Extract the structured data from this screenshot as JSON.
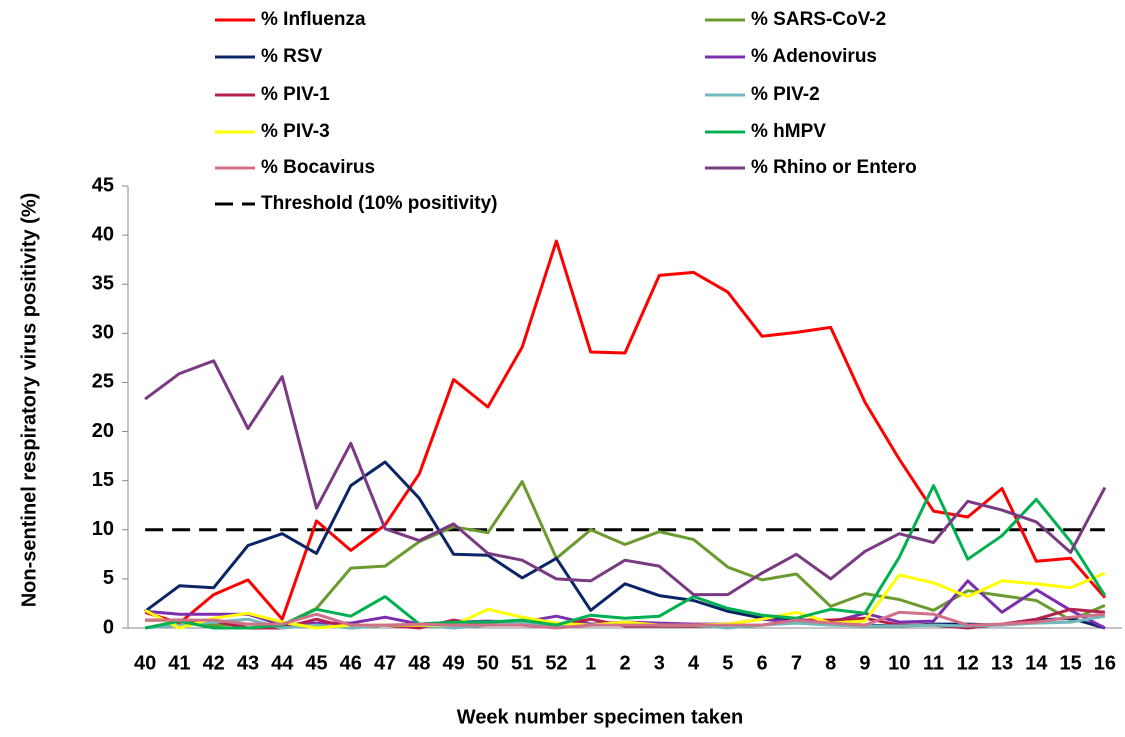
{
  "chart_data": {
    "type": "line",
    "x_label": "Week number specimen taken",
    "y_label": "Non-sentinel respiratory virus positivity (%)",
    "categories": [
      "40",
      "41",
      "42",
      "43",
      "44",
      "45",
      "46",
      "47",
      "48",
      "49",
      "50",
      "51",
      "52",
      "1",
      "2",
      "3",
      "4",
      "5",
      "6",
      "7",
      "8",
      "9",
      "10",
      "11",
      "12",
      "13",
      "14",
      "15",
      "16"
    ],
    "ylim": [
      0,
      45
    ],
    "yticks": [
      0,
      5,
      10,
      15,
      20,
      25,
      30,
      35,
      40,
      45
    ],
    "series": [
      {
        "name": "% Influenza",
        "color": "#ff0000",
        "values": [
          1.6,
          0.5,
          3.4,
          4.9,
          0.9,
          10.9,
          7.9,
          10.5,
          15.7,
          25.3,
          22.5,
          28.6,
          39.4,
          28.1,
          28.0,
          35.9,
          36.2,
          34.2,
          29.7,
          30.1,
          30.6,
          23.0,
          17.2,
          11.9,
          11.3,
          14.2,
          6.8,
          7.1,
          3.1
        ]
      },
      {
        "name": "% SARS-CoV-2",
        "color": "#6b9a2e",
        "values": [
          0.8,
          0.8,
          0.3,
          0.4,
          0.3,
          2.0,
          6.1,
          6.3,
          8.8,
          10.3,
          9.7,
          14.9,
          7.1,
          10.0,
          8.5,
          9.8,
          9.0,
          6.2,
          4.9,
          5.5,
          2.2,
          3.5,
          2.9,
          1.8,
          3.8,
          3.3,
          2.8,
          0.8,
          2.3
        ]
      },
      {
        "name": "% RSV",
        "color": "#0b2566",
        "values": [
          1.7,
          4.3,
          4.1,
          8.4,
          9.6,
          7.6,
          14.5,
          16.9,
          13.2,
          7.5,
          7.4,
          5.1,
          7.1,
          1.8,
          4.5,
          3.3,
          2.8,
          1.7,
          1.0,
          0.9,
          0.5,
          0.3,
          0.2,
          0.4,
          0.4,
          0.3,
          0.8,
          1.0,
          0
        ]
      },
      {
        "name": "% Adenovirus",
        "color": "#7b2fb0",
        "values": [
          1.7,
          1.4,
          1.4,
          1.4,
          0.3,
          0.5,
          0.5,
          1.1,
          0.4,
          0.6,
          0.7,
          0.6,
          1.2,
          0.4,
          0.6,
          0.5,
          0.4,
          0.4,
          0.9,
          0.6,
          0.6,
          1.5,
          0.6,
          0.7,
          4.8,
          1.6,
          3.9,
          1.8,
          0
        ]
      },
      {
        "name": "% PIV-1",
        "color": "#b5204f",
        "values": [
          0.8,
          0.8,
          0.7,
          0,
          0,
          0.9,
          0,
          0.3,
          0,
          0.8,
          0.3,
          0.7,
          0.3,
          0.9,
          0.2,
          0.2,
          0.2,
          0.2,
          0.3,
          0.8,
          0.8,
          1.0,
          0.3,
          0.3,
          0,
          0.4,
          0.9,
          1.9,
          1.6
        ]
      },
      {
        "name": "% PIV-2",
        "color": "#72b8bc",
        "values": [
          0,
          0.3,
          0.6,
          0.9,
          0,
          0.3,
          0,
          0.3,
          0.3,
          0,
          0.3,
          0.5,
          0.3,
          0.3,
          0.5,
          0.3,
          0.3,
          0,
          0.3,
          0.5,
          0.3,
          0.2,
          0.2,
          0.3,
          0.2,
          0.3,
          0.5,
          0.6,
          1.2
        ]
      },
      {
        "name": "% PIV-3",
        "color": "#ffff00",
        "values": [
          1.8,
          0,
          1.0,
          1.5,
          0.6,
          0,
          0.3,
          0.3,
          0.3,
          0.3,
          1.9,
          1.1,
          0.5,
          0.3,
          0.6,
          0.3,
          0.3,
          0.4,
          0.9,
          1.6,
          0.5,
          0.7,
          5.4,
          4.6,
          3.2,
          4.8,
          4.5,
          4.1,
          5.6
        ]
      },
      {
        "name": "% hMPV",
        "color": "#00b050",
        "values": [
          0,
          0.7,
          0,
          0,
          0.3,
          1.9,
          1.2,
          3.2,
          0.4,
          0.6,
          0.6,
          0.8,
          0.3,
          1.3,
          1.0,
          1.2,
          3.2,
          2.0,
          1.3,
          1.0,
          1.9,
          1.5,
          7.2,
          14.5,
          7.0,
          9.4,
          13.1,
          8.8,
          3.3
        ]
      },
      {
        "name": "% Bocavirus",
        "color": "#d0718a",
        "values": [
          0.8,
          0.8,
          0.8,
          0.4,
          0.4,
          1.4,
          0.3,
          0.3,
          0.4,
          0.3,
          0.3,
          0.3,
          0,
          0.3,
          0.3,
          0.3,
          0.3,
          0.3,
          0.3,
          0.8,
          0.5,
          0.3,
          1.6,
          1.4,
          0.3,
          0.4,
          0.6,
          1.1,
          1.4
        ]
      },
      {
        "name": "% Rhino or Entero",
        "color": "#7a3a82",
        "values": [
          23.3,
          25.9,
          27.2,
          20.3,
          25.6,
          12.2,
          18.8,
          10.1,
          8.9,
          10.6,
          7.6,
          6.9,
          5.0,
          4.8,
          6.9,
          6.3,
          3.4,
          3.4,
          5.6,
          7.5,
          5.0,
          7.8,
          9.6,
          8.7,
          12.9,
          12.0,
          10.8,
          7.7,
          14.3
        ]
      }
    ],
    "threshold": {
      "name": "Threshold (10% positivity)",
      "value": 10,
      "color": "#000000"
    }
  }
}
